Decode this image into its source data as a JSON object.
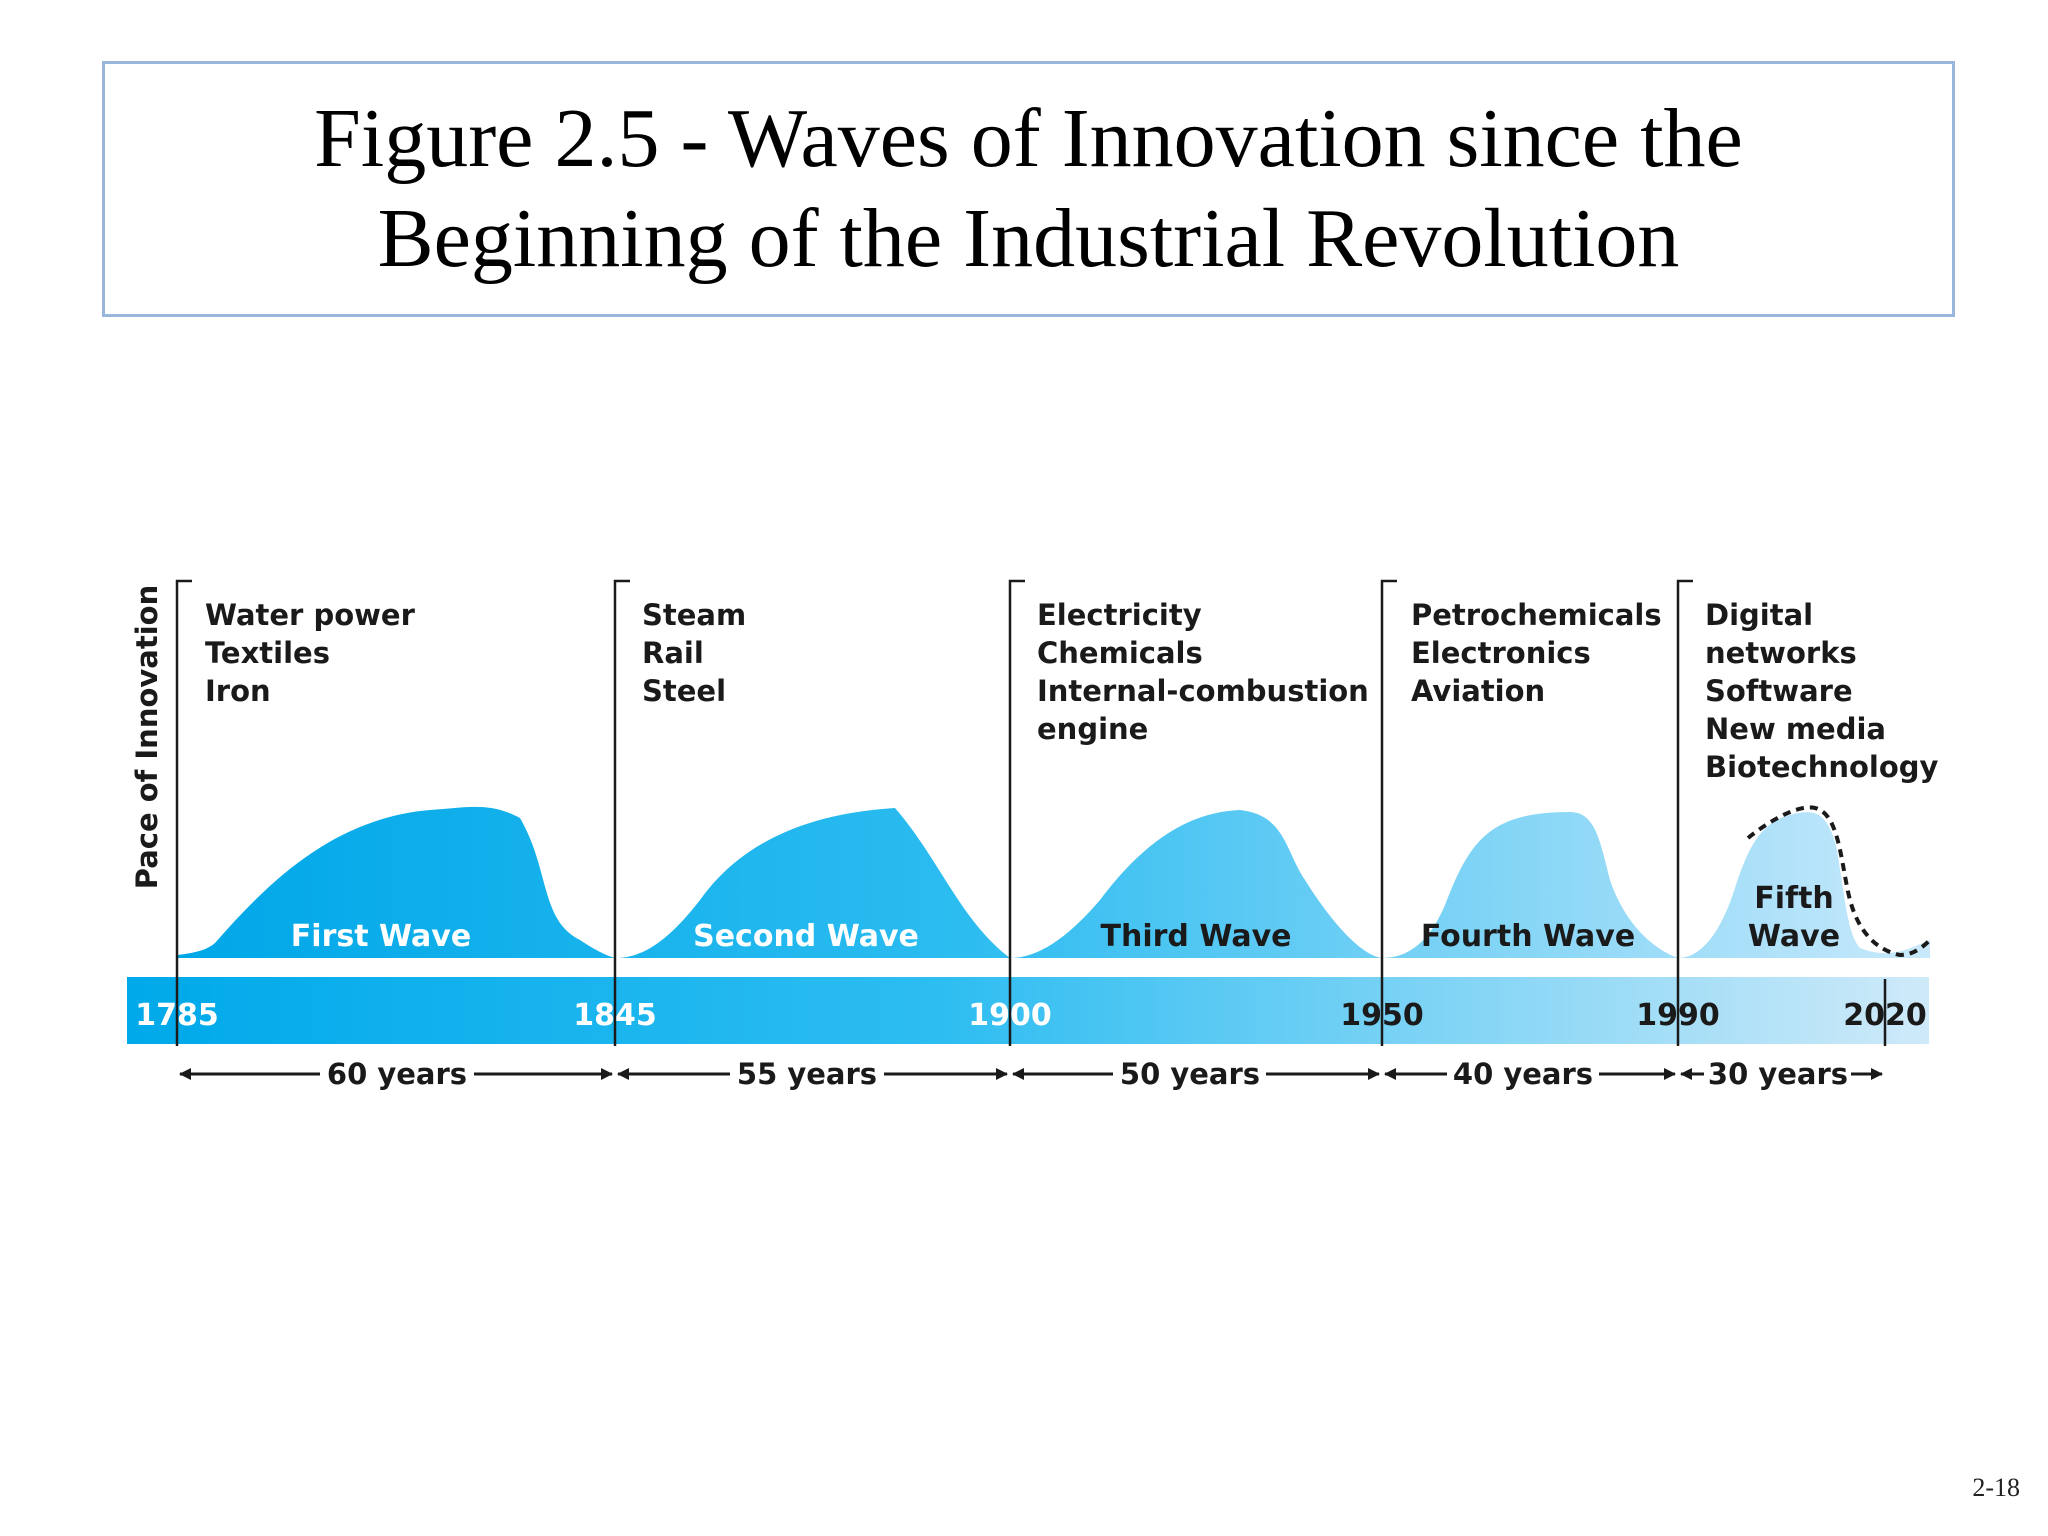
{
  "slide": {
    "title_line1": "Figure 2.5 - Waves of Innovation since the",
    "title_line2": "Beginning of the Industrial Revolution",
    "page_number": "2-18"
  },
  "diagram": {
    "y_axis_label": "Pace of Innovation",
    "colors": {
      "wave_start": "#00a7e8",
      "wave_end": "#c9e9fb",
      "bar_start": "#00a9ea",
      "bar_end": "#cfeaf9",
      "dark_text": "#1a1a1a",
      "white_text": "#ffffff"
    },
    "years": [
      "1785",
      "1845",
      "1900",
      "1950",
      "1990",
      "2020"
    ],
    "waves": [
      {
        "label": "First Wave",
        "technologies": [
          "Water power",
          "Textiles",
          "Iron"
        ],
        "duration": "60 years"
      },
      {
        "label": "Second Wave",
        "technologies": [
          "Steam",
          "Rail",
          "Steel"
        ],
        "duration": "55 years"
      },
      {
        "label": "Third Wave",
        "technologies": [
          "Electricity",
          "Chemicals",
          "Internal-combustion",
          "engine"
        ],
        "duration": "50 years"
      },
      {
        "label": "Fourth Wave",
        "technologies": [
          "Petrochemicals",
          "Electronics",
          "Aviation"
        ],
        "duration": "40 years"
      },
      {
        "label_lines": [
          "Fifth",
          "Wave"
        ],
        "technologies": [
          "Digital",
          "networks",
          "Software",
          "New media",
          "Biotechnology"
        ],
        "duration": "30 years"
      }
    ]
  }
}
